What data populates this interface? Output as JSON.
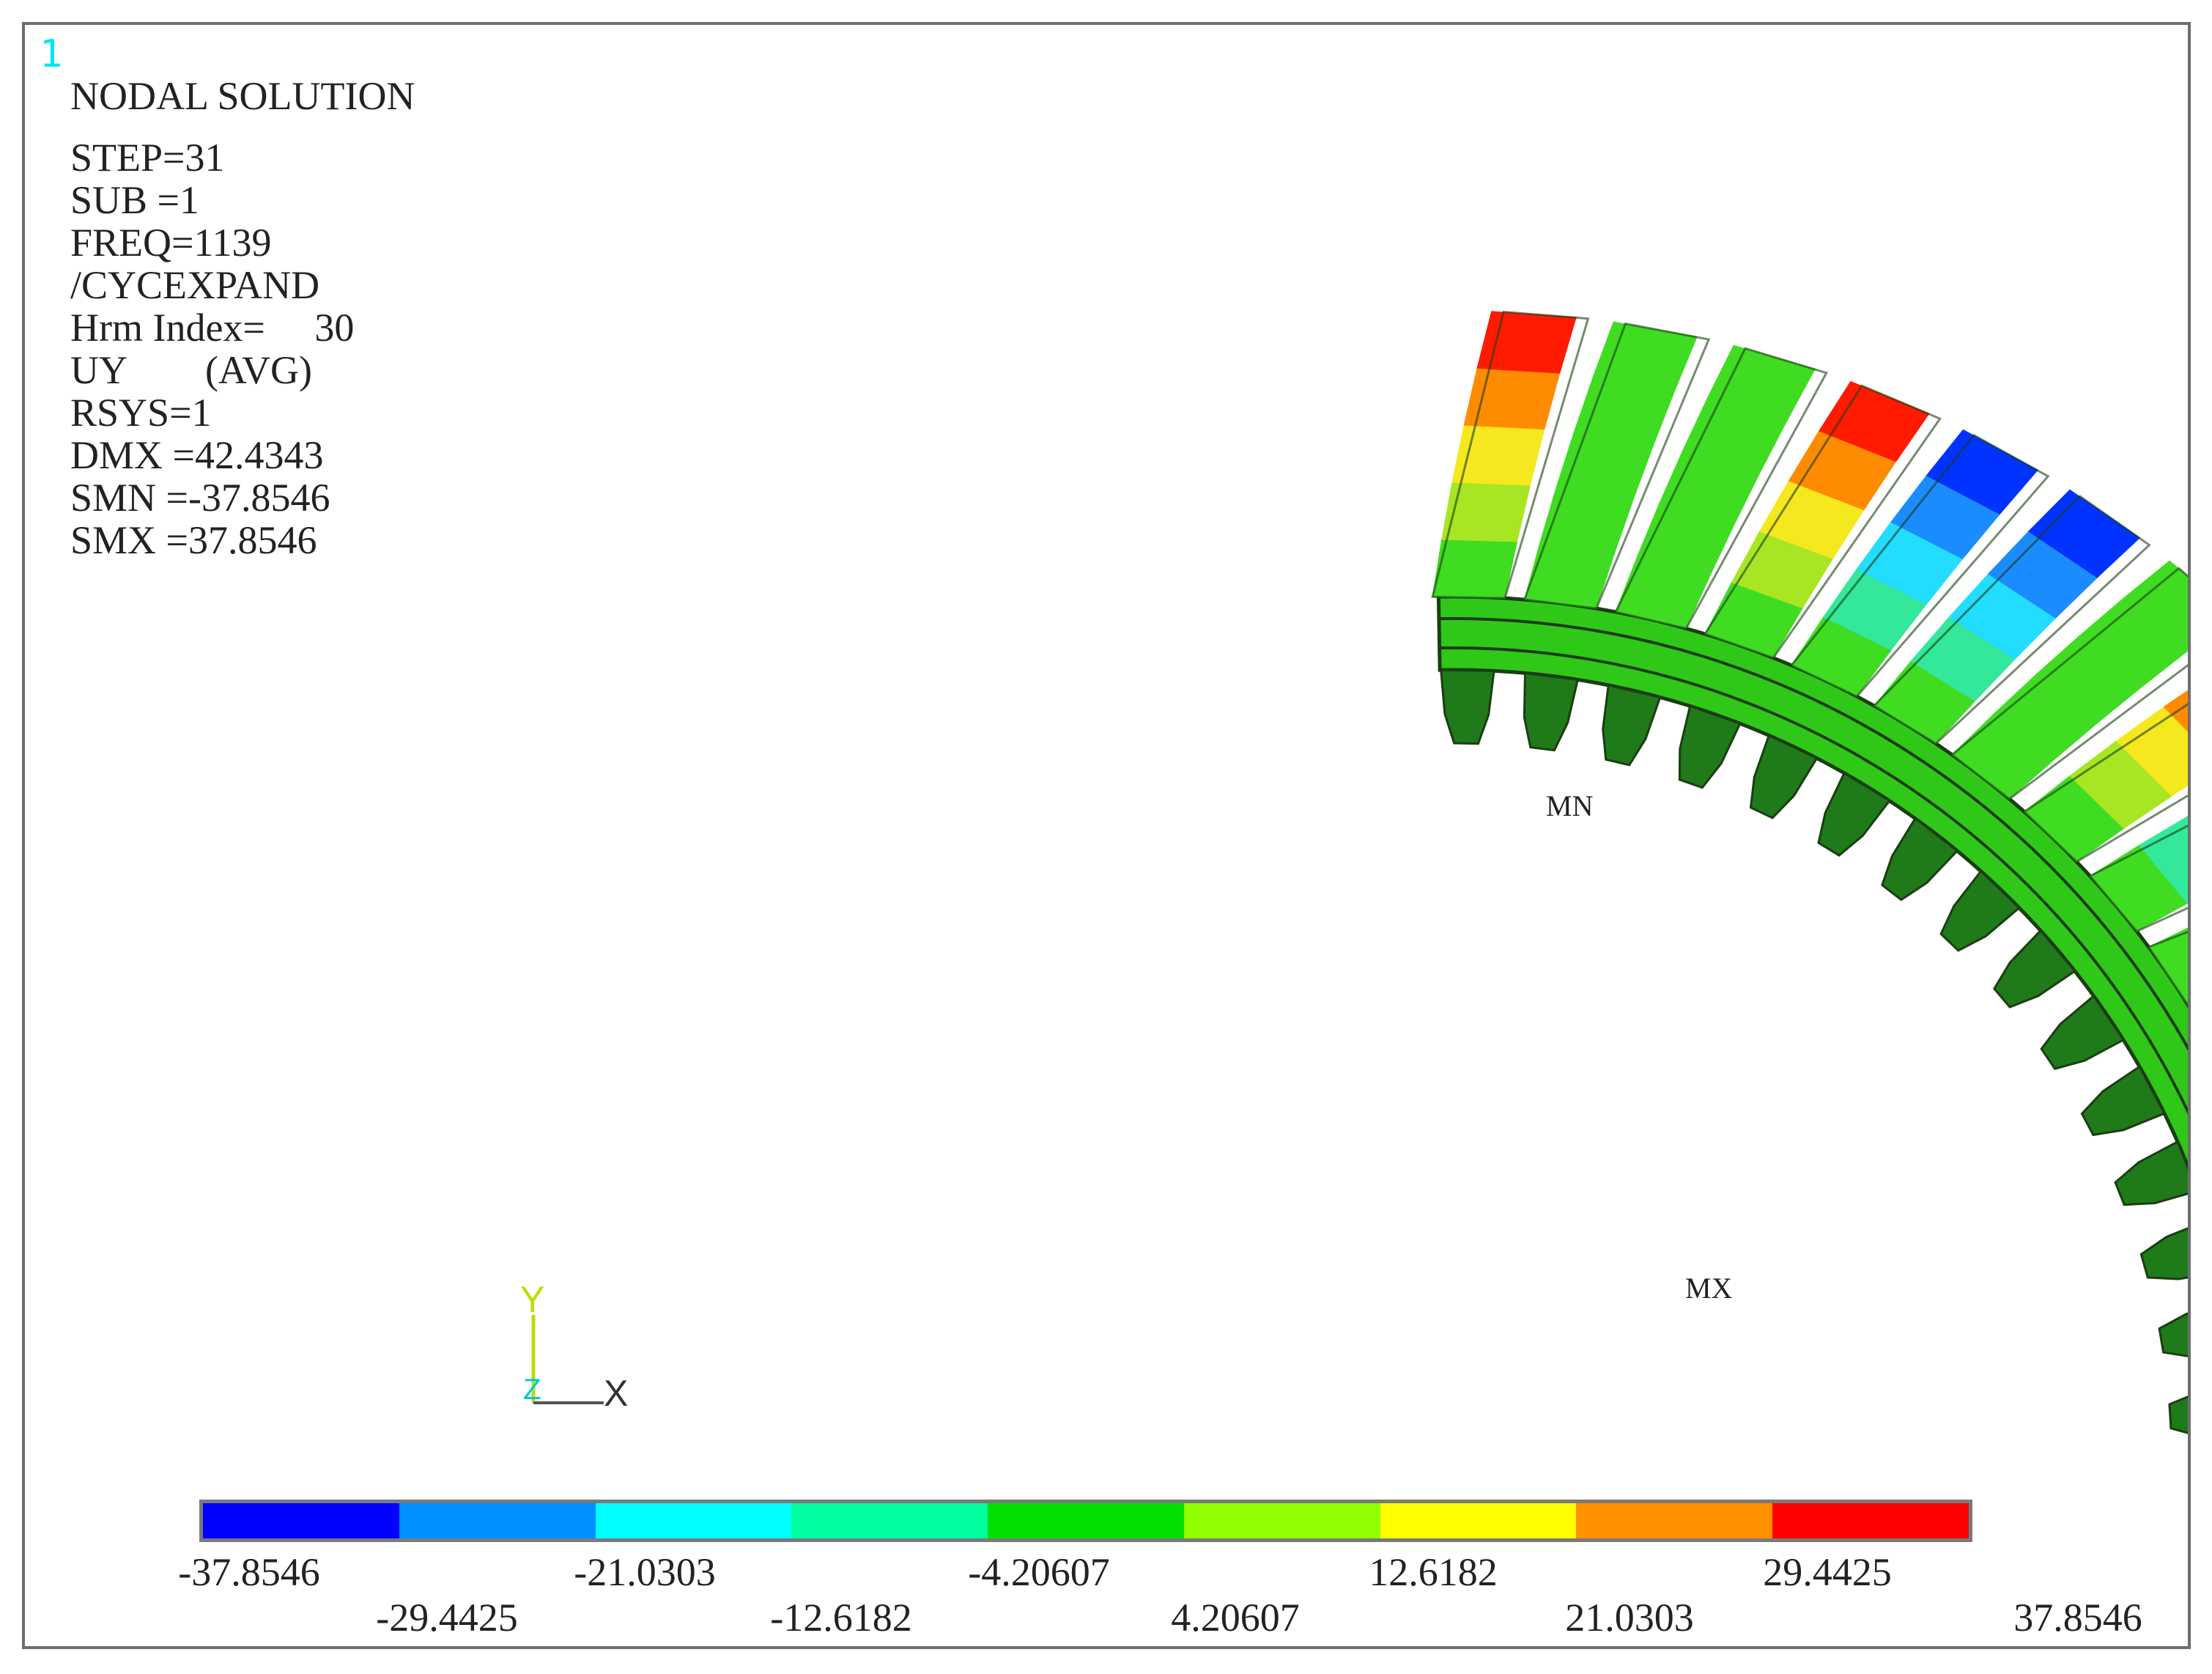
{
  "window": {
    "number": "1"
  },
  "plot_info": {
    "lines": [
      "NODAL SOLUTION",
      "STEP=31",
      "SUB =1",
      "FREQ=1139",
      "/CYCEXPAND",
      "Hrm Index=     30",
      "UY        (AVG)",
      "RSYS=1",
      "DMX =42.4343",
      "SMN =-37.8546",
      "SMX =37.8546"
    ]
  },
  "markers": {
    "min_label": "MN",
    "max_label": "MX"
  },
  "triad": {
    "y_label": "Y",
    "z_label": "Z",
    "x_label": "X"
  },
  "legend": {
    "colors": [
      "#0000ff",
      "#0090ff",
      "#00ffff",
      "#00ffa0",
      "#00e000",
      "#90ff00",
      "#ffff00",
      "#ff9000",
      "#ff0000"
    ],
    "values_top": [
      "-37.8546",
      "-21.0303",
      "-4.20607",
      "12.6182",
      "29.4425"
    ],
    "values_bottom": [
      "-29.4425",
      "-12.6182",
      "4.20607",
      "21.0303",
      "37.8546"
    ]
  },
  "blade_palette": {
    "tip_neg": [
      "#0033ff",
      "#1a8cff",
      "#22ddff",
      "#33e89a",
      "#3fdc22"
    ],
    "tip_pos": [
      "#ff1a00",
      "#ff8c00",
      "#f5e81e",
      "#a8e623",
      "#3fdc22"
    ],
    "uniform": "#3fdc22",
    "disk": "#30c818",
    "root": "#1f7a1a",
    "outline": "#1b3d12"
  }
}
